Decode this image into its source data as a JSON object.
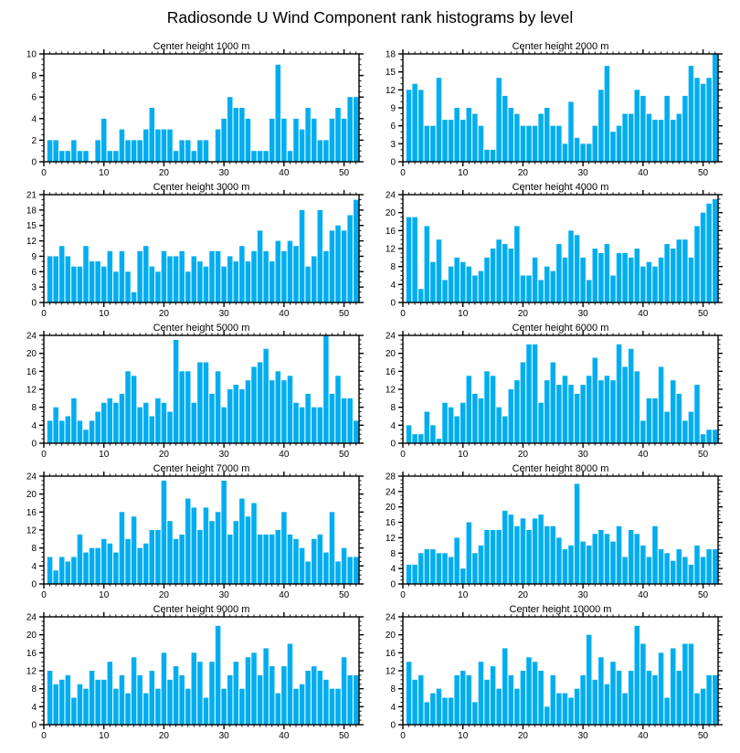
{
  "title": "Radiosonde U Wind Component rank histograms by level",
  "colors": {
    "bar": "#00aeef",
    "axis": "#000000",
    "background": "#ffffff",
    "text": "#000000"
  },
  "axis_defaults": {
    "x_ticks": [
      0,
      10,
      20,
      30,
      40,
      50
    ],
    "x_minor_step": 1,
    "xlim": [
      0,
      52.5
    ],
    "ranks": "1-52"
  },
  "chart_data": [
    {
      "type": "bar",
      "title": "Center height 1000 m",
      "xlabel": "",
      "ylabel": "",
      "ylim": [
        0,
        10
      ],
      "y_step": 2,
      "y_minor_step": 0.5,
      "values": [
        2,
        2,
        1,
        1,
        2,
        1,
        1,
        0,
        2,
        4,
        1,
        1,
        3,
        2,
        2,
        2,
        3,
        5,
        3,
        3,
        3,
        1,
        2,
        2,
        1,
        2,
        2,
        0,
        3,
        4,
        6,
        5,
        5,
        4,
        1,
        1,
        1,
        4,
        9,
        4,
        1,
        4,
        3,
        5,
        4,
        2,
        2,
        4,
        5,
        4,
        6,
        6
      ]
    },
    {
      "type": "bar",
      "title": "Center height 2000 m",
      "xlabel": "",
      "ylabel": "",
      "ylim": [
        0,
        18
      ],
      "y_step": 3,
      "y_minor_step": 1,
      "values": [
        12,
        13,
        12,
        6,
        6,
        14,
        7,
        7,
        9,
        7,
        9,
        8,
        6,
        2,
        2,
        14,
        11,
        9,
        8,
        6,
        6,
        6,
        8,
        9,
        6,
        6,
        3,
        10,
        4,
        3,
        3,
        6,
        12,
        16,
        5,
        6,
        8,
        8,
        12,
        11,
        8,
        7,
        7,
        11,
        7,
        8,
        11,
        16,
        14,
        13,
        14,
        18
      ]
    },
    {
      "type": "bar",
      "title": "Center height 3000 m",
      "xlabel": "",
      "ylabel": "",
      "ylim": [
        0,
        21
      ],
      "y_step": 3,
      "y_minor_step": 1,
      "values": [
        9,
        9,
        11,
        9,
        7,
        7,
        11,
        8,
        8,
        7,
        10,
        6,
        10,
        6,
        2,
        10,
        11,
        7,
        6,
        10,
        9,
        9,
        10,
        6,
        9,
        8,
        7,
        10,
        10,
        7,
        9,
        8,
        11,
        8,
        10,
        14,
        10,
        8,
        12,
        10,
        12,
        11,
        18,
        7,
        9,
        18,
        10,
        14,
        15,
        14,
        17,
        20
      ]
    },
    {
      "type": "bar",
      "title": "Center height 4000 m",
      "xlabel": "",
      "ylabel": "",
      "ylim": [
        0,
        24
      ],
      "y_step": 4,
      "y_minor_step": 1,
      "values": [
        19,
        19,
        3,
        17,
        9,
        14,
        5,
        8,
        10,
        9,
        8,
        6,
        7,
        10,
        12,
        14,
        13,
        12,
        17,
        6,
        6,
        10,
        5,
        8,
        7,
        13,
        10,
        16,
        15,
        10,
        5,
        12,
        11,
        13,
        6,
        11,
        11,
        10,
        12,
        8,
        9,
        8,
        10,
        13,
        12,
        14,
        14,
        10,
        17,
        20,
        22,
        23
      ]
    },
    {
      "type": "bar",
      "title": "Center height 5000 m",
      "xlabel": "",
      "ylabel": "",
      "ylim": [
        0,
        24
      ],
      "y_step": 4,
      "y_minor_step": 1,
      "values": [
        5,
        8,
        5,
        6,
        10,
        5,
        3,
        5,
        7,
        9,
        10,
        9,
        11,
        16,
        15,
        8,
        9,
        6,
        10,
        9,
        7,
        23,
        16,
        16,
        9,
        18,
        18,
        11,
        16,
        8,
        12,
        13,
        12,
        14,
        17,
        18,
        21,
        14,
        16,
        14,
        15,
        9,
        8,
        11,
        8,
        8,
        24,
        11,
        15,
        10,
        10,
        5
      ]
    },
    {
      "type": "bar",
      "title": "Center height 6000 m",
      "xlabel": "",
      "ylabel": "",
      "ylim": [
        0,
        24
      ],
      "y_step": 4,
      "y_minor_step": 1,
      "values": [
        4,
        2,
        2,
        7,
        4,
        1,
        9,
        8,
        6,
        9,
        15,
        11,
        10,
        16,
        15,
        8,
        6,
        12,
        14,
        18,
        22,
        22,
        9,
        14,
        18,
        13,
        15,
        13,
        11,
        13,
        15,
        19,
        14,
        15,
        14,
        22,
        17,
        21,
        16,
        5,
        10,
        10,
        17,
        7,
        14,
        11,
        5,
        7,
        13,
        2,
        3,
        3
      ]
    },
    {
      "type": "bar",
      "title": "Center height 7000 m",
      "xlabel": "",
      "ylabel": "",
      "ylim": [
        0,
        24
      ],
      "y_step": 4,
      "y_minor_step": 1,
      "values": [
        6,
        3,
        6,
        5,
        6,
        11,
        7,
        8,
        8,
        10,
        9,
        7,
        16,
        10,
        15,
        8,
        9,
        12,
        12,
        23,
        14,
        10,
        11,
        19,
        17,
        12,
        17,
        14,
        16,
        23,
        11,
        14,
        19,
        15,
        18,
        11,
        11,
        11,
        12,
        16,
        11,
        10,
        8,
        5,
        10,
        11,
        7,
        16,
        5,
        8,
        6,
        6
      ]
    },
    {
      "type": "bar",
      "title": "Center height 8000 m",
      "xlabel": "",
      "ylabel": "",
      "ylim": [
        0,
        28
      ],
      "y_step": 4,
      "y_minor_step": 1,
      "values": [
        5,
        5,
        8,
        9,
        9,
        8,
        8,
        7,
        12,
        4,
        16,
        8,
        10,
        14,
        14,
        14,
        19,
        18,
        15,
        17,
        14,
        17,
        18,
        15,
        15,
        12,
        9,
        10,
        26,
        11,
        10,
        13,
        14,
        13,
        11,
        15,
        7,
        14,
        13,
        10,
        7,
        15,
        9,
        8,
        6,
        9,
        7,
        5,
        10,
        7,
        9,
        9
      ]
    },
    {
      "type": "bar",
      "title": "Center height 9000 m",
      "xlabel": "",
      "ylabel": "",
      "ylim": [
        0,
        24
      ],
      "y_step": 4,
      "y_minor_step": 1,
      "values": [
        12,
        9,
        10,
        11,
        6,
        9,
        8,
        12,
        10,
        10,
        14,
        8,
        11,
        7,
        15,
        11,
        7,
        12,
        8,
        16,
        10,
        13,
        11,
        8,
        16,
        14,
        6,
        14,
        22,
        8,
        11,
        14,
        8,
        15,
        16,
        11,
        17,
        13,
        7,
        13,
        18,
        8,
        9,
        12,
        13,
        12,
        10,
        8,
        8,
        15,
        11,
        11
      ]
    },
    {
      "type": "bar",
      "title": "Center height 10000 m",
      "xlabel": "",
      "ylabel": "",
      "ylim": [
        0,
        24
      ],
      "y_step": 4,
      "y_minor_step": 1,
      "values": [
        14,
        10,
        11,
        5,
        7,
        8,
        6,
        6,
        11,
        12,
        11,
        5,
        14,
        10,
        13,
        8,
        17,
        11,
        8,
        12,
        15,
        14,
        12,
        4,
        11,
        7,
        7,
        6,
        8,
        11,
        20,
        10,
        15,
        9,
        14,
        12,
        7,
        12,
        22,
        18,
        12,
        11,
        16,
        6,
        17,
        12,
        18,
        18,
        7,
        8,
        11,
        11
      ]
    }
  ]
}
